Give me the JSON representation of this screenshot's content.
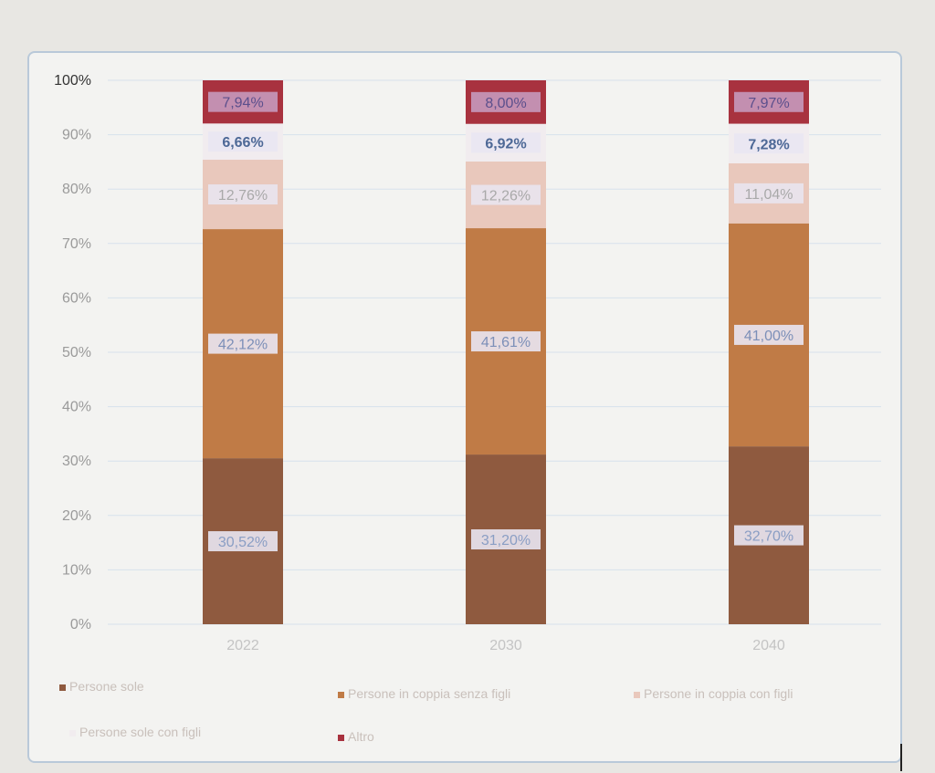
{
  "chart_data": {
    "type": "bar",
    "stacked": true,
    "categories": [
      "2022",
      "2030",
      "2040"
    ],
    "y_ticks": [
      "0%",
      "10%",
      "20%",
      "30%",
      "40%",
      "50%",
      "60%",
      "70%",
      "80%",
      "90%",
      "100%"
    ],
    "ylim": [
      0,
      100
    ],
    "grid": true,
    "legend_position": "bottom",
    "series": [
      {
        "name": "Persone sole",
        "color": "#8f5a3f",
        "values": [
          30.52,
          31.2,
          32.7
        ],
        "labels": [
          "30,52%",
          "31,20%",
          "32,70%"
        ]
      },
      {
        "name": "Persone in coppia senza figli",
        "color": "#c07b46",
        "values": [
          42.12,
          41.61,
          41.0
        ],
        "labels": [
          "42,12%",
          "41,61%",
          "41,00%"
        ]
      },
      {
        "name": "Persone in coppia con figli",
        "color": "#e9c8bc",
        "values": [
          12.76,
          12.26,
          11.04
        ],
        "labels": [
          "12,76%",
          "12,26%",
          "11,04%"
        ]
      },
      {
        "name": "Persone sole con figli",
        "color": "#f1ecef",
        "values": [
          6.66,
          6.92,
          7.28
        ],
        "labels": [
          "6,66%",
          "6,92%",
          "7,28%"
        ]
      },
      {
        "name": "Altro",
        "color": "#a8323f",
        "values": [
          7.94,
          8.0,
          7.97
        ],
        "labels": [
          "7,94%",
          "8,00%",
          "7,97%"
        ]
      }
    ]
  }
}
